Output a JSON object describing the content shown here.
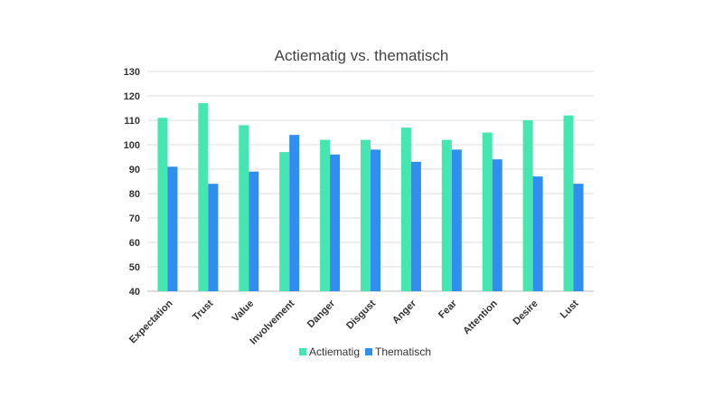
{
  "chart_data": {
    "type": "bar",
    "title": "Actiematig vs. thematisch",
    "xlabel": "",
    "ylabel": "",
    "ylim": [
      40,
      130
    ],
    "yticks": [
      40,
      50,
      60,
      70,
      80,
      90,
      100,
      110,
      120,
      130
    ],
    "grid": true,
    "legend_position": "bottom",
    "categories": [
      "Expectation",
      "Trust",
      "Value",
      "Involvement",
      "Danger",
      "Disgust",
      "Anger",
      "Fear",
      "Attention",
      "Desire",
      "Lust"
    ],
    "series": [
      {
        "name": "Actiematig",
        "color": "#45e6b0",
        "values": [
          111,
          117,
          108,
          97,
          102,
          102,
          107,
          102,
          105,
          110,
          112
        ]
      },
      {
        "name": "Thematisch",
        "color": "#2f8ef0",
        "values": [
          91,
          84,
          89,
          104,
          96,
          98,
          93,
          98,
          94,
          87,
          84
        ]
      }
    ]
  }
}
